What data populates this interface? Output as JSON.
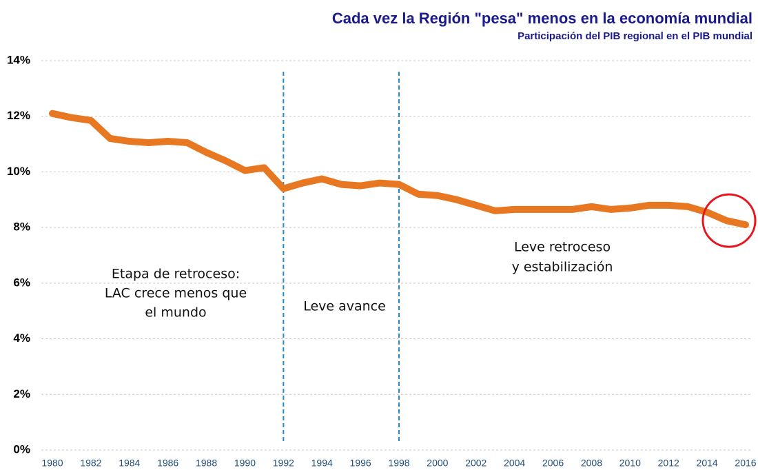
{
  "chart_data": {
    "type": "line",
    "title": "Cada vez la Región \"pesa\" menos en la economía mundial",
    "subtitle": "Participación del PIB regional en el PIB mundial",
    "x": [
      1980,
      1981,
      1982,
      1983,
      1984,
      1985,
      1986,
      1987,
      1988,
      1989,
      1990,
      1991,
      1992,
      1993,
      1994,
      1995,
      1996,
      1997,
      1998,
      1999,
      2000,
      2001,
      2002,
      2003,
      2004,
      2005,
      2006,
      2007,
      2008,
      2009,
      2010,
      2011,
      2012,
      2013,
      2014,
      2015,
      2016
    ],
    "series": [
      {
        "color": "#e87722",
        "values": [
          12.1,
          11.95,
          11.85,
          11.2,
          11.1,
          11.05,
          11.1,
          11.05,
          10.7,
          10.4,
          10.05,
          10.15,
          9.4,
          9.6,
          9.75,
          9.55,
          9.5,
          9.6,
          9.55,
          9.2,
          9.15,
          9.0,
          8.8,
          8.6,
          8.65,
          8.65,
          8.65,
          8.65,
          8.75,
          8.65,
          8.7,
          8.8,
          8.8,
          8.75,
          8.55,
          8.25,
          8.1
        ]
      }
    ],
    "xlim": [
      1980,
      2016
    ],
    "xticks": [
      1980,
      1982,
      1984,
      1986,
      1988,
      1990,
      1992,
      1994,
      1996,
      1998,
      2000,
      2002,
      2004,
      2006,
      2008,
      2010,
      2012,
      2014,
      2016
    ],
    "ylim": [
      0,
      14
    ],
    "yticks": [
      {
        "value": 0,
        "label": "0%"
      },
      {
        "value": 2,
        "label": "2%"
      },
      {
        "value": 4,
        "label": "4%"
      },
      {
        "value": 6,
        "label": "6%"
      },
      {
        "value": 8,
        "label": "8%"
      },
      {
        "value": 10,
        "label": "10%"
      },
      {
        "value": 12,
        "label": "12%"
      },
      {
        "value": 14,
        "label": "14%"
      }
    ],
    "grid": true,
    "vlines": [
      1992,
      1998
    ],
    "annotations": [
      [
        "Etapa de retroceso:",
        "LAC crece menos que",
        "el mundo"
      ],
      [
        "Leve avance"
      ],
      [
        "Leve retroceso",
        "y estabilización"
      ]
    ]
  }
}
